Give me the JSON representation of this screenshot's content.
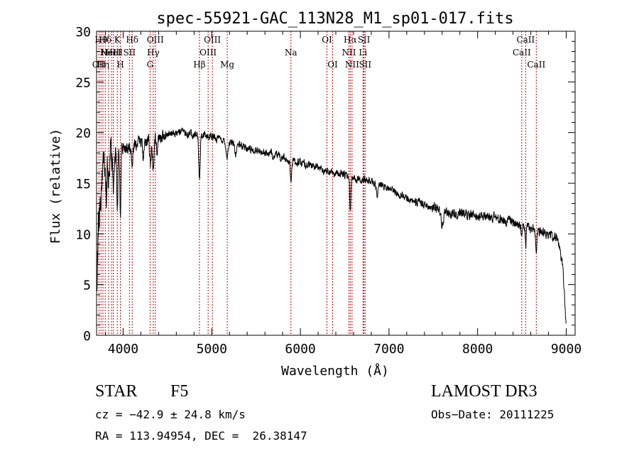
{
  "chart_data": {
    "type": "line",
    "title": "spec-55921-GAC_113N28_M1_sp01-017.fits",
    "xlabel": "Wavelength (Å)",
    "ylabel": "Flux (relative)",
    "xlim": [
      3700,
      9100
    ],
    "ylim": [
      0,
      30
    ],
    "xticks": [
      4000,
      5000,
      6000,
      7000,
      8000,
      9000
    ],
    "yticks": [
      0,
      5,
      10,
      15,
      20,
      25,
      30
    ],
    "xtick_labels": [
      "4000",
      "5000",
      "6000",
      "7000",
      "8000",
      "9000"
    ],
    "ytick_labels": [
      "0",
      "5",
      "10",
      "15",
      "20",
      "25",
      "30"
    ],
    "grid": false,
    "continuum": {
      "x": [
        3700,
        3740,
        3780,
        3820,
        3860,
        3900,
        3950,
        4000,
        4100,
        4200,
        4300,
        4400,
        4500,
        4600,
        4700,
        4800,
        4900,
        5000,
        5100,
        5200,
        5300,
        5400,
        5500,
        5600,
        5700,
        5800,
        5900,
        6000,
        6100,
        6200,
        6300,
        6400,
        6500,
        6600,
        6700,
        6800,
        6900,
        7000,
        7100,
        7200,
        7300,
        7400,
        7500,
        7600,
        7700,
        7800,
        7900,
        8000,
        8100,
        8200,
        8300,
        8400,
        8500,
        8600,
        8700,
        8800,
        8900,
        8960,
        9000
      ],
      "y": [
        6,
        14,
        16.5,
        17.5,
        17.8,
        18,
        18.2,
        18.5,
        18.8,
        19,
        19.3,
        19.5,
        19.8,
        20,
        20,
        19.9,
        19.7,
        19.6,
        19.3,
        19,
        18.8,
        18.5,
        18.2,
        18,
        17.8,
        17.5,
        17.2,
        17,
        16.8,
        16.5,
        16.2,
        16,
        15.8,
        15.6,
        15.4,
        15.2,
        15,
        14.5,
        14,
        13.6,
        13.2,
        12.9,
        12.6,
        12.3,
        12,
        12,
        12,
        11.8,
        11.8,
        11.6,
        11.3,
        11.1,
        10.8,
        10.5,
        10.3,
        10,
        9.5,
        7,
        1
      ]
    },
    "absorption_features": [
      {
        "x": 3810,
        "depth": 3.0,
        "width": 6
      },
      {
        "x": 3835,
        "depth": 3.0,
        "width": 6
      },
      {
        "x": 3889,
        "depth": 3.5,
        "width": 7
      },
      {
        "x": 3934,
        "depth": 6.0,
        "width": 6
      },
      {
        "x": 3969,
        "depth": 6.5,
        "width": 6
      },
      {
        "x": 4101,
        "depth": 2.5,
        "width": 8
      },
      {
        "x": 4226,
        "depth": 2.0,
        "width": 6
      },
      {
        "x": 4308,
        "depth": 2.5,
        "width": 8
      },
      {
        "x": 4340,
        "depth": 3.0,
        "width": 9
      },
      {
        "x": 4383,
        "depth": 1.5,
        "width": 6
      },
      {
        "x": 4861,
        "depth": 4.5,
        "width": 8
      },
      {
        "x": 5172,
        "depth": 1.5,
        "width": 10
      },
      {
        "x": 5270,
        "depth": 1.0,
        "width": 8
      },
      {
        "x": 5893,
        "depth": 2.0,
        "width": 8
      },
      {
        "x": 6563,
        "depth": 3.5,
        "width": 6
      },
      {
        "x": 6867,
        "depth": 1.5,
        "width": 10
      },
      {
        "x": 7600,
        "depth": 1.5,
        "width": 14
      },
      {
        "x": 8498,
        "depth": 1.5,
        "width": 6
      },
      {
        "x": 8542,
        "depth": 2.0,
        "width": 6
      },
      {
        "x": 8662,
        "depth": 1.8,
        "width": 6
      }
    ],
    "line_markers": [
      {
        "x": 3727,
        "label": "OII",
        "row": 3
      },
      {
        "x": 3750,
        "label": "Hθ",
        "row": 1
      },
      {
        "x": 3772,
        "label": "Hη",
        "row": 3
      },
      {
        "x": 3798,
        "label": "Hδ",
        "row": 1
      },
      {
        "x": 3835,
        "label": "HeI",
        "row": 2
      },
      {
        "x": 3869,
        "label": "NeIII",
        "row": 2
      },
      {
        "x": 3889,
        "label": "HeI",
        "row": 2
      },
      {
        "x": 3934,
        "label": "K",
        "row": 1
      },
      {
        "x": 3969,
        "label": "H",
        "row": 3
      },
      {
        "x": 4071,
        "label": "SII",
        "row": 2
      },
      {
        "x": 4102,
        "label": "Hδ",
        "row": 1
      },
      {
        "x": 4304,
        "label": "G",
        "row": 3
      },
      {
        "x": 4340,
        "label": "Hγ",
        "row": 2
      },
      {
        "x": 4363,
        "label": "OIII",
        "row": 1
      },
      {
        "x": 4861,
        "label": "Hβ",
        "row": 3
      },
      {
        "x": 4959,
        "label": "OIII",
        "row": 2
      },
      {
        "x": 5007,
        "label": "OIII",
        "row": 1
      },
      {
        "x": 5175,
        "label": "Mg",
        "row": 3
      },
      {
        "x": 5893,
        "label": "Na",
        "row": 2
      },
      {
        "x": 6300,
        "label": "OI",
        "row": 1
      },
      {
        "x": 6364,
        "label": "OI",
        "row": 3
      },
      {
        "x": 6548,
        "label": "NII",
        "row": 2
      },
      {
        "x": 6563,
        "label": "Hα",
        "row": 1
      },
      {
        "x": 6583,
        "label": "NII",
        "row": 3
      },
      {
        "x": 6707,
        "label": "Li",
        "row": 2
      },
      {
        "x": 6717,
        "label": "SII",
        "row": 1
      },
      {
        "x": 6731,
        "label": "SII",
        "row": 3
      },
      {
        "x": 8498,
        "label": "CaII",
        "row": 2
      },
      {
        "x": 8542,
        "label": "CaII",
        "row": 1
      },
      {
        "x": 8662,
        "label": "CaII",
        "row": 3
      }
    ],
    "marker_color": "#cc0000"
  },
  "info": {
    "class": "STAR",
    "subclass": "F5",
    "survey": "LAMOST DR3",
    "cz": "cz = −42.9 ± 24.8 km/s",
    "obs_date": "Obs−Date: 20111225",
    "coords": "RA = 113.94954, DEC =  26.38147"
  }
}
